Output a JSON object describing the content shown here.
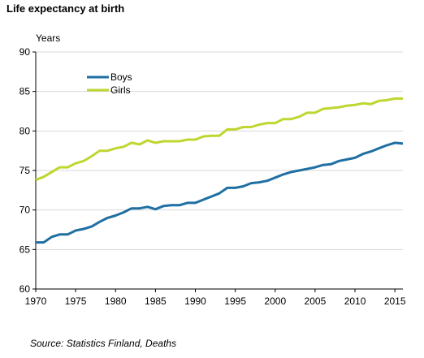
{
  "title": "Life expectancy at birth",
  "source": "Source: Statistics Finland, Deaths",
  "chart_data": {
    "type": "line",
    "title": "Life expectancy at birth",
    "ylabel": "Years",
    "xlabel": "",
    "xlim": [
      1970,
      2016
    ],
    "ylim": [
      60,
      90
    ],
    "x_ticks": [
      1970,
      1975,
      1980,
      1985,
      1990,
      1995,
      2000,
      2005,
      2010,
      2015
    ],
    "y_ticks": [
      60,
      65,
      70,
      75,
      80,
      85,
      90
    ],
    "grid": true,
    "legend_position": "top-left",
    "x": [
      1970,
      1971,
      1972,
      1973,
      1974,
      1975,
      1976,
      1977,
      1978,
      1979,
      1980,
      1981,
      1982,
      1983,
      1984,
      1985,
      1986,
      1987,
      1988,
      1989,
      1990,
      1991,
      1992,
      1993,
      1994,
      1995,
      1996,
      1997,
      1998,
      1999,
      2000,
      2001,
      2002,
      2003,
      2004,
      2005,
      2006,
      2007,
      2008,
      2009,
      2010,
      2011,
      2012,
      2013,
      2014,
      2015,
      2016
    ],
    "series": [
      {
        "name": "Boys",
        "color": "#1f6fa3",
        "values": [
          65.9,
          65.9,
          66.6,
          66.9,
          66.9,
          67.4,
          67.6,
          67.9,
          68.5,
          69.0,
          69.3,
          69.7,
          70.2,
          70.2,
          70.4,
          70.1,
          70.5,
          70.6,
          70.6,
          70.9,
          70.9,
          71.3,
          71.7,
          72.1,
          72.8,
          72.8,
          73.0,
          73.4,
          73.5,
          73.7,
          74.1,
          74.5,
          74.8,
          75.0,
          75.2,
          75.4,
          75.7,
          75.8,
          76.2,
          76.4,
          76.6,
          77.1,
          77.4,
          77.8,
          78.2,
          78.5,
          78.4
        ]
      },
      {
        "name": "Girls",
        "color": "#bfd630",
        "values": [
          73.8,
          74.2,
          74.8,
          75.4,
          75.4,
          75.9,
          76.2,
          76.8,
          77.5,
          77.5,
          77.8,
          78.0,
          78.5,
          78.3,
          78.8,
          78.5,
          78.7,
          78.7,
          78.7,
          78.9,
          78.9,
          79.3,
          79.4,
          79.4,
          80.2,
          80.2,
          80.5,
          80.5,
          80.8,
          81.0,
          81.0,
          81.5,
          81.5,
          81.8,
          82.3,
          82.3,
          82.8,
          82.9,
          83.0,
          83.2,
          83.3,
          83.5,
          83.4,
          83.8,
          83.9,
          84.1,
          84.1
        ]
      }
    ]
  }
}
